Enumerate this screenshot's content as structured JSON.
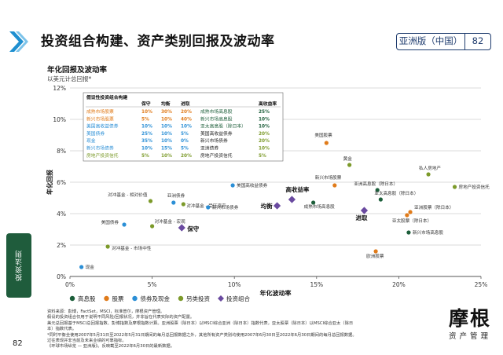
{
  "header": {
    "title": "投资组合构建、资产类别回报及波动率",
    "region": "亚洲版（中国）",
    "page": "82"
  },
  "side_tab": "投资法则",
  "footer": {
    "page": "82",
    "notes": [
      "资料来源：彭博，FactSet，MSCI，标准普尔，摩根资产管理。",
      "假设的投资组合仅用于说明不同风险/回报状况，并非旨在代表实际的资产配置。",
      "美元总回报基于MSCI总回报指数、彭博指数及摩根指数计算。亚洲股票（除日本）以MSCI综合亚洲（除日本）指数代表，亚太股票（除日本）以MSCI综合亚太（除日",
      "本）指数代表。",
      "*同时平衡全使用2007年5月31日至2022年5月31日期间的每月总回报数据之外，其他所有资产类别均使用2007年6月30日至2022年6月30日期间的每月总回报数据。",
      "过往表现并非当前及未来业绩的可靠指标。",
      "《环球市场纵览 — 亚洲版》。反映截至2022年6月30日的最新数据。"
    ]
  },
  "logo": {
    "text": "摩根",
    "sub": "资产管理"
  },
  "chart_data": {
    "type": "scatter",
    "title": "年化回报及波动率",
    "subtitle": "以美元计总回报*",
    "xlabel": "年化波动率",
    "ylabel": "年化回报",
    "xlim": [
      0,
      25
    ],
    "ylim": [
      0,
      12
    ],
    "x_ticks": [
      "0%",
      "5%",
      "10%",
      "15%",
      "20%",
      "25%"
    ],
    "y_ticks": [
      "0%",
      "2%",
      "4%",
      "6%",
      "8%",
      "10%",
      "12%"
    ],
    "colors": {
      "equity": "#e07b1a",
      "fixed_income": "#2b8fd6",
      "alternatives": "#7c9a2a",
      "portfolio": "#6a4aa0",
      "high_yield": "#1c5e3a"
    },
    "legend": [
      {
        "label": "高息股",
        "category": "high_yield"
      },
      {
        "label": "股票",
        "category": "equity"
      },
      {
        "label": "债券及现金",
        "category": "fixed_income"
      },
      {
        "label": "另类投资",
        "category": "alternatives"
      },
      {
        "label": "投资组合",
        "category": "portfolio"
      }
    ],
    "points": [
      {
        "label": "现金",
        "x": 0.7,
        "y": 0.6,
        "category": "fixed_income"
      },
      {
        "label": "美国债券",
        "x": 3.3,
        "y": 3.3,
        "category": "fixed_income"
      },
      {
        "label": "对冲基金 - 相对价值",
        "x": 4.9,
        "y": 4.8,
        "category": "alternatives"
      },
      {
        "label": "对冲基金 - 宏观",
        "x": 5.0,
        "y": 3.2,
        "category": "alternatives"
      },
      {
        "label": "对冲基金 - 市场中性",
        "x": 2.3,
        "y": 1.9,
        "category": "alternatives"
      },
      {
        "label": "亚洲债券",
        "x": 6.3,
        "y": 4.7,
        "category": "fixed_income"
      },
      {
        "label": "对冲基金 - 受压资产",
        "x": 6.9,
        "y": 4.6,
        "category": "alternatives"
      },
      {
        "label": "新兴市场债券",
        "x": 8.4,
        "y": 4.4,
        "category": "fixed_income"
      },
      {
        "label": "美国高收益债券",
        "x": 9.9,
        "y": 5.8,
        "category": "fixed_income"
      },
      {
        "label": "保守",
        "x": 6.8,
        "y": 3.1,
        "category": "portfolio"
      },
      {
        "label": "均衡",
        "x": 12.6,
        "y": 4.5,
        "category": "portfolio"
      },
      {
        "label": "高收益率",
        "x": 13.5,
        "y": 4.9,
        "category": "portfolio"
      },
      {
        "label": "进取",
        "x": 17.9,
        "y": 4.2,
        "category": "portfolio"
      },
      {
        "label": "美国股票",
        "x": 15.6,
        "y": 8.5,
        "category": "equity"
      },
      {
        "label": "黄金",
        "x": 17.0,
        "y": 7.1,
        "category": "alternatives"
      },
      {
        "label": "私人房地产",
        "x": 21.8,
        "y": 6.5,
        "category": "alternatives"
      },
      {
        "label": "房地产投资信托",
        "x": 23.4,
        "y": 5.7,
        "category": "alternatives"
      },
      {
        "label": "亚洲股票（除日本）",
        "x": 20.7,
        "y": 4.1,
        "category": "equity"
      },
      {
        "label": "亚太股票（除日本）",
        "x": 20.5,
        "y": 3.9,
        "category": "equity"
      },
      {
        "label": "欧洲股票",
        "x": 18.6,
        "y": 1.6,
        "category": "equity"
      },
      {
        "label": "新兴市场股票",
        "x": 16.1,
        "y": 5.8,
        "category": "equity"
      },
      {
        "label": "亚洲高息股（除日本）",
        "x": 18.7,
        "y": 5.5,
        "category": "high_yield"
      },
      {
        "label": "亚太高息股（除日本）",
        "x": 18.9,
        "y": 4.9,
        "category": "high_yield"
      },
      {
        "label": "新兴市场高息股",
        "x": 20.6,
        "y": 2.8,
        "category": "high_yield"
      },
      {
        "label": "成熟市场高息股",
        "x": 14.8,
        "y": 4.7,
        "category": "high_yield"
      }
    ],
    "portfolio_table": {
      "title": "假设性投资组合构建",
      "headers": [
        "",
        "保守",
        "均衡",
        "进取",
        "",
        "高收益率"
      ],
      "rows": [
        {
          "left": "成熟市场股票",
          "c": "10%",
          "b": "30%",
          "a": "20%",
          "right": "成熟市场高息股",
          "y": "25%",
          "cat": "equity"
        },
        {
          "left": "新兴市场股票",
          "c": "5%",
          "b": "10%",
          "a": "40%",
          "right": "新兴市场高息股",
          "y": "10%",
          "cat": "equity"
        },
        {
          "left": "美国高收益债券",
          "c": "10%",
          "b": "10%",
          "a": "10%",
          "right": "亚太高息股（除日本）",
          "y": "10%",
          "cat": "fixed_income"
        },
        {
          "left": "美国债券",
          "c": "25%",
          "b": "10%",
          "a": "5%",
          "right": "美国高收益债券",
          "y": "20%",
          "cat": "fixed_income"
        },
        {
          "left": "现金",
          "c": "35%",
          "b": "10%",
          "a": "0%",
          "right": "新兴市场债券",
          "y": "20%",
          "cat": "fixed_income"
        },
        {
          "left": "新兴市场债券",
          "c": "10%",
          "b": "15%",
          "a": "5%",
          "right": "亚洲债券",
          "y": "10%",
          "cat": "fixed_income"
        },
        {
          "left": "房地产投资信托",
          "c": "5%",
          "b": "10%",
          "a": "20%",
          "right": "房地产投资信托",
          "y": "5%",
          "cat": "alternatives"
        }
      ]
    }
  }
}
